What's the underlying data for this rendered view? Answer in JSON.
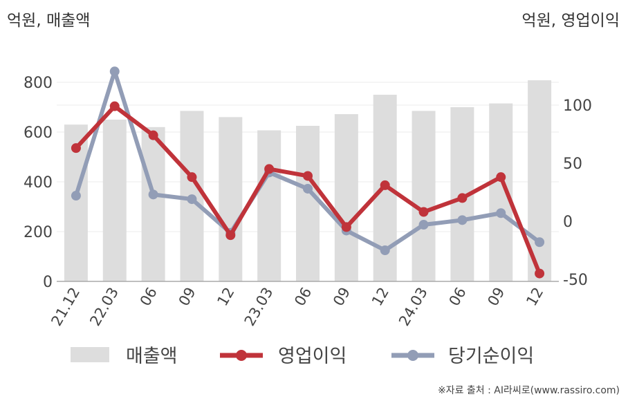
{
  "unit_left": "억원, 매출액",
  "unit_right": "억원, 영업이익",
  "source": "※자료 출처 : AI라씨로(www.rassiro.com)",
  "chart_data": {
    "type": "bar+line",
    "categories": [
      "21.12",
      "22.03",
      "06",
      "09",
      "12",
      "23.03",
      "06",
      "09",
      "12",
      "24.03",
      "06",
      "09",
      "12"
    ],
    "left_axis": {
      "ylim": [
        0,
        900
      ],
      "ticks": [
        0,
        200,
        400,
        600,
        800
      ]
    },
    "right_axis": {
      "ylim": [
        -50,
        120
      ],
      "ticks": [
        -50,
        0,
        50,
        100
      ]
    },
    "grid": true,
    "legend_position": "bottom",
    "series": [
      {
        "name": "매출액",
        "kind": "bar",
        "axis": "left",
        "color": "#dddddd",
        "values": [
          630,
          650,
          620,
          685,
          660,
          607,
          625,
          672,
          750,
          685,
          700,
          715,
          808
        ]
      },
      {
        "name": "영업이익",
        "kind": "line",
        "axis": "right",
        "color": "#c0333a",
        "values": [
          63,
          99,
          74,
          38,
          -12,
          45,
          39,
          -5,
          31,
          8,
          20,
          38,
          -45
        ]
      },
      {
        "name": "당기순이익",
        "kind": "line",
        "axis": "right",
        "color": "#929db6",
        "values": [
          22,
          129,
          23,
          19,
          -10,
          42,
          28,
          -8,
          -25,
          -3,
          1,
          7,
          -18
        ]
      }
    ]
  }
}
